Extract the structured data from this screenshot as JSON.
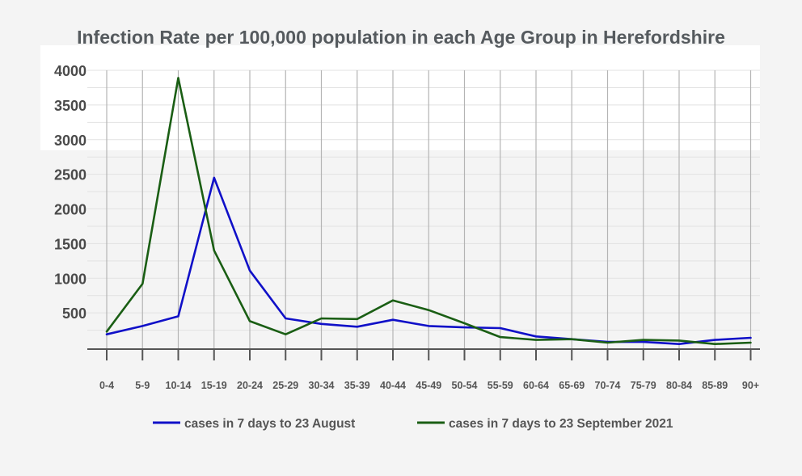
{
  "chart_data": {
    "type": "line",
    "title": "Infection Rate per 100,000 population in each Age Group in Herefordshire",
    "xlabel": "",
    "ylabel": "",
    "categories": [
      "0-4",
      "5-9",
      "10-14",
      "15-19",
      "20-24",
      "25-29",
      "30-34",
      "35-39",
      "40-44",
      "45-49",
      "50-54",
      "55-59",
      "60-64",
      "65-69",
      "70-74",
      "75-79",
      "80-84",
      "85-89",
      "90+"
    ],
    "yticks": [
      500,
      1000,
      1500,
      2000,
      2500,
      3000,
      3500,
      4000
    ],
    "ylim": [
      -20,
      4000
    ],
    "grid": true,
    "legend_position": "bottom",
    "series": [
      {
        "name": "cases in 7 days to 23 August",
        "color": "#1010c8",
        "values": [
          190,
          310,
          450,
          2450,
          1110,
          420,
          340,
          300,
          400,
          310,
          290,
          280,
          160,
          120,
          80,
          80,
          50,
          110,
          140
        ]
      },
      {
        "name": "cases in 7 days to 23 September 2021",
        "color": "#1a5e14",
        "values": [
          230,
          920,
          3890,
          1400,
          380,
          190,
          420,
          410,
          680,
          540,
          350,
          150,
          110,
          120,
          70,
          110,
          100,
          50,
          70
        ]
      }
    ]
  }
}
